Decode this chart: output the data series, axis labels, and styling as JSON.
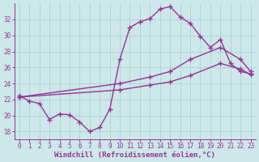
{
  "background_color": "#cce8e8",
  "grid_color": "#aacccc",
  "line_color": "#993399",
  "marker": "+",
  "markersize": 4,
  "linewidth": 1.0,
  "xlabel": "Windchill (Refroidissement éolien,°C)",
  "xlabel_fontsize": 6.5,
  "tick_fontsize": 5.5,
  "xlim": [
    -0.5,
    23.5
  ],
  "ylim": [
    17.0,
    34.0
  ],
  "yticks": [
    18,
    20,
    22,
    24,
    26,
    28,
    30,
    32
  ],
  "xticks": [
    0,
    1,
    2,
    3,
    4,
    5,
    6,
    7,
    8,
    9,
    10,
    11,
    12,
    13,
    14,
    15,
    16,
    17,
    18,
    19,
    20,
    21,
    22,
    23
  ],
  "line1_x": [
    0,
    1,
    2,
    3,
    4,
    5,
    6,
    7,
    8,
    9,
    10,
    11,
    12,
    13,
    14,
    15,
    16,
    17,
    18,
    19,
    20,
    21,
    22,
    23
  ],
  "line1_y": [
    22.5,
    21.8,
    21.5,
    19.5,
    20.2,
    20.1,
    19.2,
    18.0,
    18.5,
    20.8,
    27.0,
    31.0,
    31.7,
    32.1,
    33.3,
    33.6,
    32.3,
    31.5,
    29.9,
    28.5,
    29.5,
    26.5,
    25.5,
    25.2
  ],
  "line2_x": [
    0,
    10,
    13,
    15,
    17,
    20,
    22,
    23
  ],
  "line2_y": [
    22.3,
    24.0,
    24.8,
    25.5,
    27.0,
    28.5,
    27.0,
    25.5
  ],
  "line3_x": [
    0,
    10,
    13,
    15,
    17,
    20,
    22,
    23
  ],
  "line3_y": [
    22.3,
    23.2,
    23.8,
    24.2,
    25.0,
    26.5,
    25.8,
    25.1
  ]
}
